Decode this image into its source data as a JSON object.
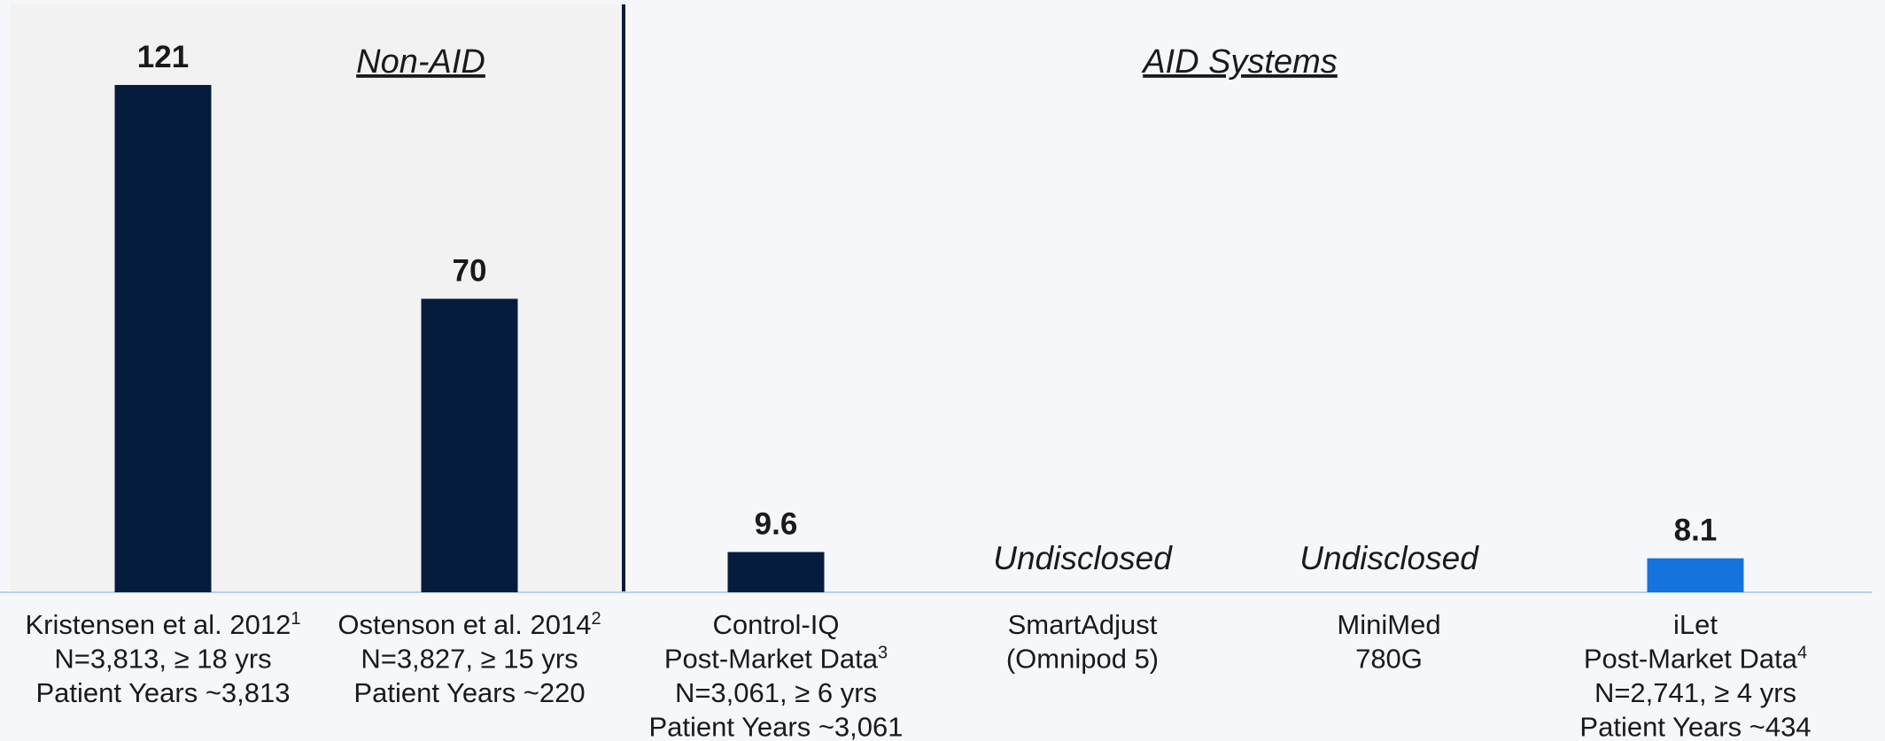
{
  "chart_data": {
    "type": "bar",
    "groups": [
      {
        "label": "Non-AID",
        "count": 2
      },
      {
        "label": "AID Systems",
        "count": 4
      }
    ],
    "categories": [
      [
        {
          "text": "Kristensen et al. 2012",
          "sup": "1"
        },
        "N=3,813, ≥ 18 yrs",
        "Patient Years ~3,813"
      ],
      [
        {
          "text": "Ostenson et al. 2014",
          "sup": "2"
        },
        "N=3,827, ≥ 15 yrs",
        "Patient Years ~220"
      ],
      [
        "Control-IQ",
        {
          "text": "Post-Market Data",
          "sup": "3"
        },
        "N=3,061, ≥ 6 yrs",
        "Patient Years ~3,061"
      ],
      [
        "SmartAdjust",
        "(Omnipod 5)"
      ],
      [
        "MiniMed",
        "780G"
      ],
      [
        "iLet",
        {
          "text": "Post-Market Data",
          "sup": "4"
        },
        "N=2,741, ≥ 4 yrs",
        "Patient Years ~434"
      ]
    ],
    "values": [
      121,
      70,
      9.6,
      null,
      null,
      8.1
    ],
    "value_labels": [
      "121",
      "70",
      "9.6",
      "Undisclosed",
      "Undisclosed",
      "8.1"
    ],
    "colors": [
      "#061c3d",
      "#061c3d",
      "#061c3d",
      "#061c3d",
      "#061c3d",
      "#1473dc"
    ],
    "label_colors": [
      "#404040",
      "#404040",
      "#404040",
      "#1a1a1a",
      "#1a1a1a",
      "#1473c8"
    ],
    "ylim": [
      0,
      140
    ]
  }
}
